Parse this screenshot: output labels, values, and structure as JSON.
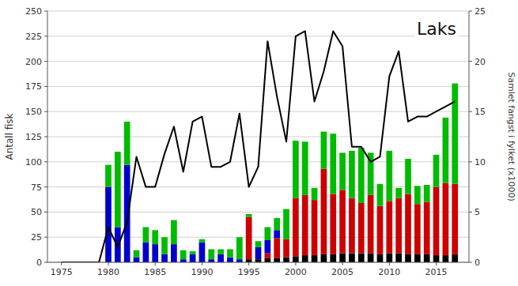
{
  "chart_data": {
    "type": "bar",
    "title": "Laks",
    "ylabel": "Antall fisk",
    "y2label": "Samlet fangst i fylket (x1000)",
    "x": [
      1975,
      1976,
      1977,
      1978,
      1979,
      1980,
      1981,
      1982,
      1983,
      1984,
      1985,
      1986,
      1987,
      1988,
      1989,
      1990,
      1991,
      1992,
      1993,
      1994,
      1995,
      1996,
      1997,
      1998,
      1999,
      2000,
      2001,
      2002,
      2003,
      2004,
      2005,
      2006,
      2007,
      2008,
      2009,
      2010,
      2011,
      2012,
      2013,
      2014,
      2015,
      2016,
      2017
    ],
    "stacked": true,
    "grid": true,
    "xlim": [
      1973.5,
      2018.5
    ],
    "xticks": [
      1975,
      1980,
      1985,
      1990,
      1995,
      2000,
      2005,
      2010,
      2015
    ],
    "ylim": [
      0,
      250
    ],
    "yticks": [
      0,
      25,
      50,
      75,
      100,
      125,
      150,
      175,
      200,
      225,
      250
    ],
    "y2lim": [
      0,
      25
    ],
    "y2ticks": [
      0,
      5,
      10,
      15,
      20,
      25
    ],
    "series": [
      {
        "color": "#000000",
        "values": [
          0,
          0,
          0,
          0,
          0,
          0,
          0,
          0,
          0,
          0,
          0,
          0,
          0,
          0,
          0,
          0,
          0,
          0,
          0,
          0,
          3,
          3,
          4,
          4,
          5,
          6,
          7,
          7,
          8,
          8,
          9,
          9,
          9,
          9,
          8,
          9,
          9,
          8,
          8,
          8,
          7,
          7,
          8
        ]
      },
      {
        "color": "#cc0000",
        "values": [
          0,
          0,
          0,
          0,
          0,
          0,
          0,
          0,
          0,
          0,
          0,
          0,
          0,
          0,
          0,
          0,
          0,
          0,
          0,
          0,
          42,
          0,
          5,
          20,
          18,
          58,
          60,
          55,
          85,
          60,
          63,
          55,
          50,
          58,
          48,
          52,
          55,
          60,
          50,
          52,
          68,
          72,
          70
        ]
      },
      {
        "color": "#0000cc",
        "values": [
          0,
          0,
          0,
          0,
          0,
          75,
          35,
          97,
          5,
          20,
          18,
          8,
          18,
          3,
          8,
          20,
          3,
          8,
          5,
          3,
          0,
          12,
          13,
          8,
          0,
          0,
          0,
          0,
          0,
          0,
          0,
          0,
          0,
          0,
          0,
          0,
          0,
          0,
          0,
          0,
          0,
          0,
          0
        ]
      },
      {
        "color": "#00bb00",
        "values": [
          0,
          0,
          0,
          0,
          0,
          22,
          75,
          43,
          7,
          15,
          14,
          17,
          24,
          9,
          3,
          3,
          10,
          5,
          8,
          22,
          3,
          6,
          13,
          12,
          30,
          57,
          53,
          12,
          37,
          60,
          37,
          47,
          55,
          42,
          22,
          50,
          10,
          35,
          18,
          17,
          32,
          65,
          100
        ]
      },
      {
        "type": "line",
        "axis": "y2",
        "color": "#000000",
        "values": [
          0,
          0,
          0,
          0,
          0,
          3.5,
          1.5,
          4.0,
          10.5,
          7.5,
          7.5,
          10.8,
          13.5,
          9.0,
          14.0,
          14.5,
          9.5,
          9.5,
          10.0,
          14.8,
          7.5,
          9.5,
          22.0,
          16.5,
          12.0,
          22.5,
          23.0,
          16.0,
          19.0,
          23.0,
          21.5,
          11.5,
          11.5,
          10.0,
          10.5,
          18.5,
          21.0,
          14.0,
          14.5,
          14.5,
          15.0,
          15.5,
          16.0
        ]
      }
    ]
  }
}
